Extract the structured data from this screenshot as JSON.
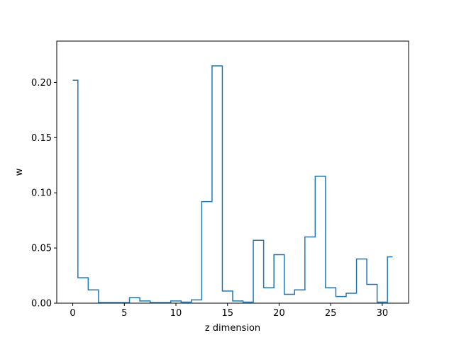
{
  "chart_data": {
    "type": "line",
    "drawstyle": "steps-mid",
    "xlabel": "z dimension",
    "ylabel": "w",
    "xlim": [
      -1.55,
      32.55
    ],
    "ylim": [
      0,
      0.2375
    ],
    "x_ticks": [
      0,
      5,
      10,
      15,
      20,
      25,
      30
    ],
    "y_ticks": [
      0.0,
      0.05,
      0.1,
      0.15,
      0.2
    ],
    "x_tick_labels": [
      "0",
      "5",
      "10",
      "15",
      "20",
      "25",
      "30"
    ],
    "y_tick_labels": [
      "0.00",
      "0.05",
      "0.10",
      "0.15",
      "0.20"
    ],
    "grid": false,
    "series": [
      {
        "color": "#1f77b4",
        "x": [
          0,
          1,
          2,
          3,
          4,
          5,
          6,
          7,
          8,
          9,
          10,
          11,
          12,
          13,
          14,
          15,
          16,
          17,
          18,
          19,
          20,
          21,
          22,
          23,
          24,
          25,
          26,
          27,
          28,
          29,
          30,
          31
        ],
        "values": [
          0.202,
          0.023,
          0.012,
          0.0005,
          0.0005,
          0.0005,
          0.005,
          0.002,
          0.0005,
          0.0005,
          0.002,
          0.001,
          0.003,
          0.092,
          0.215,
          0.011,
          0.002,
          0.001,
          0.057,
          0.014,
          0.044,
          0.008,
          0.012,
          0.06,
          0.115,
          0.014,
          0.006,
          0.009,
          0.04,
          0.017,
          0.001,
          0.042
        ]
      }
    ]
  }
}
